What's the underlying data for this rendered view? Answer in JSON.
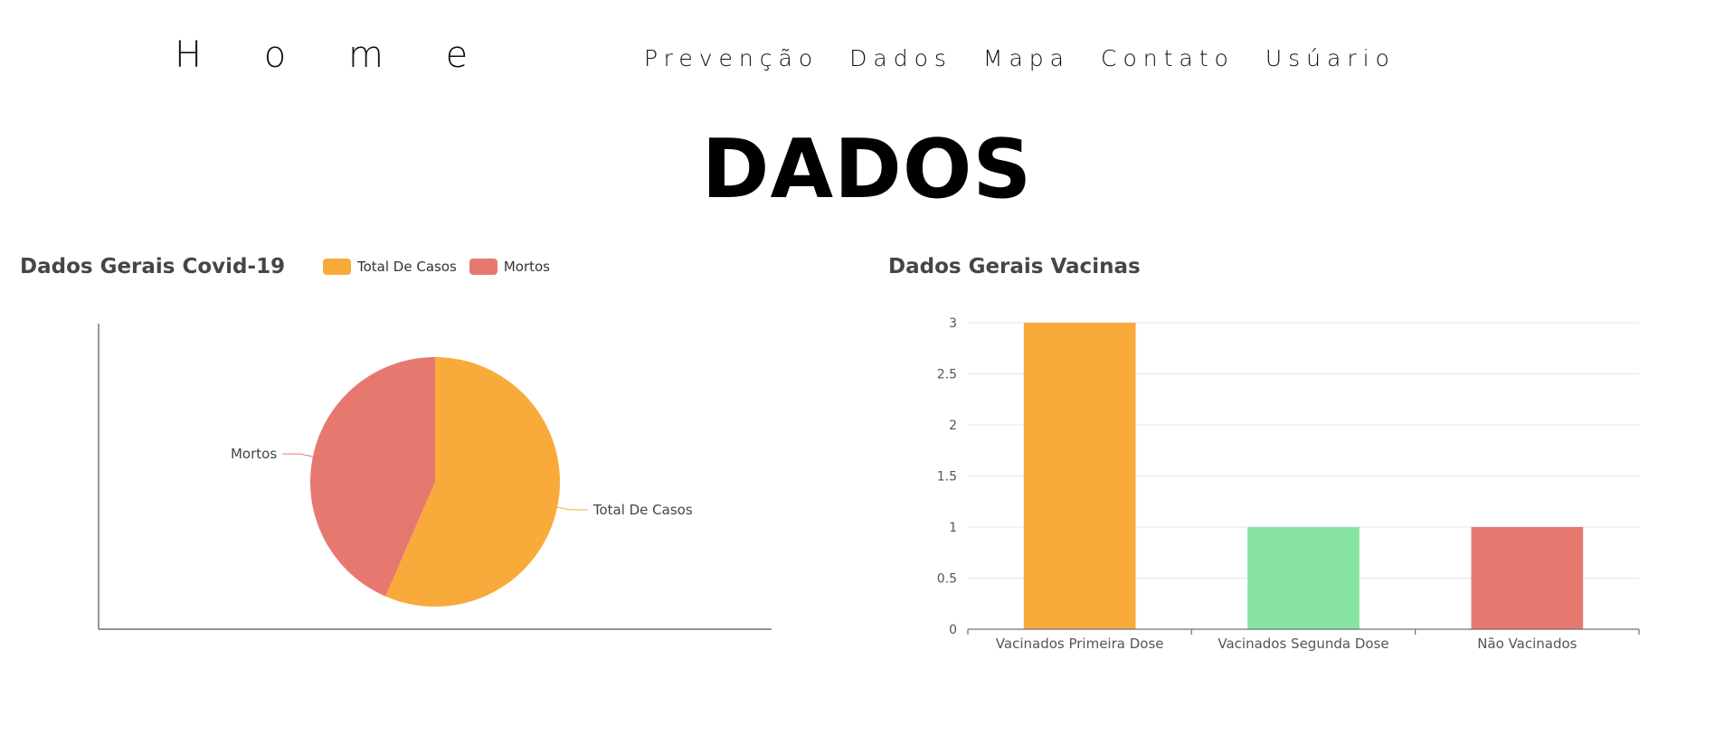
{
  "nav": {
    "home": "H o m e",
    "links": [
      "Prevenção",
      "Dados",
      "Mapa",
      "Contato",
      "Usúario"
    ]
  },
  "page": {
    "title": "DADOS"
  },
  "colors": {
    "orange": "#f8ab3a",
    "red": "#e77870",
    "green": "#88e4a2"
  },
  "chart_data": [
    {
      "type": "pie",
      "title": "Dados Gerais Covid-19",
      "legend": [
        "Total De Casos",
        "Mortos"
      ],
      "legend_position": "top",
      "slices": [
        {
          "label": "Total De Casos",
          "value": 56.5,
          "color": "#f8ab3a"
        },
        {
          "label": "Mortos",
          "value": 43.5,
          "color": "#e77870"
        }
      ]
    },
    {
      "type": "bar",
      "title": "Dados Gerais Vacinas",
      "categories": [
        "Vacinados Primeira Dose",
        "Vacinados Segunda Dose",
        "Não Vacinados"
      ],
      "values": [
        3,
        1,
        1
      ],
      "colors": [
        "#f8ab3a",
        "#88e4a2",
        "#e77870"
      ],
      "ylim": [
        0,
        3
      ],
      "yticks": [
        "0",
        "0.5",
        "1",
        "1.5",
        "2",
        "2.5",
        "3"
      ],
      "grid": true
    }
  ]
}
